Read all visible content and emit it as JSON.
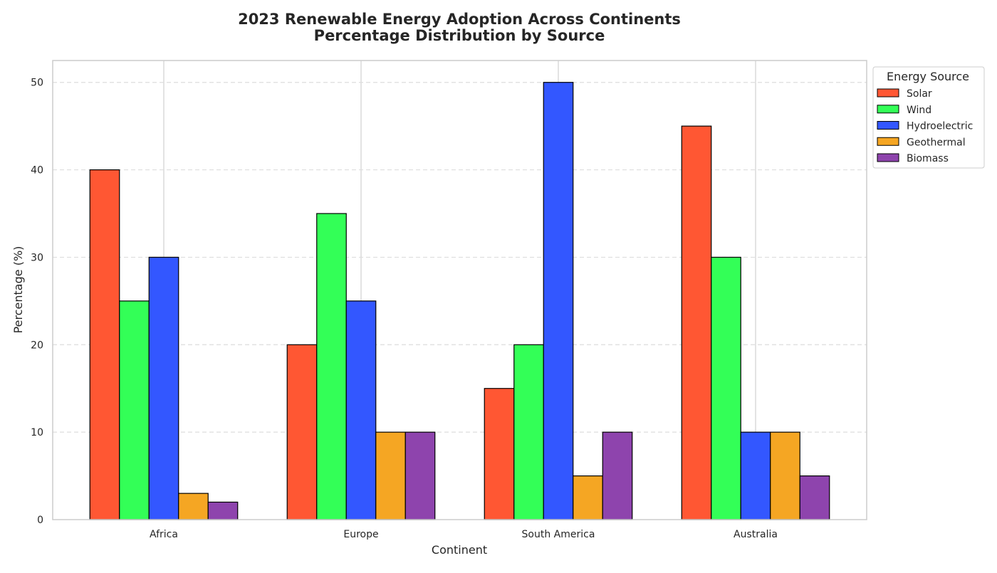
{
  "chart_data": {
    "type": "bar",
    "title": "2023 Renewable Energy Adoption Across Continents",
    "subtitle": "Percentage Distribution by Source",
    "xlabel": "Continent",
    "ylabel": "Percentage (%)",
    "categories": [
      "Africa",
      "Europe",
      "South America",
      "Australia"
    ],
    "ylim": [
      0,
      52.5
    ],
    "yticks": [
      0,
      10,
      20,
      30,
      40,
      50
    ],
    "grid": {
      "y": true,
      "y_style": "dashed",
      "x": true
    },
    "legend": {
      "title": "Energy Source",
      "placement": "outside-top-right"
    },
    "series": [
      {
        "name": "Solar",
        "color": "#FF5733",
        "values": [
          40,
          20,
          15,
          45
        ]
      },
      {
        "name": "Wind",
        "color": "#33FF57",
        "values": [
          25,
          35,
          20,
          30
        ]
      },
      {
        "name": "Hydroelectric",
        "color": "#3357FF",
        "values": [
          30,
          25,
          50,
          10
        ]
      },
      {
        "name": "Geothermal",
        "color": "#F5A623",
        "values": [
          3,
          10,
          5,
          10
        ]
      },
      {
        "name": "Biomass",
        "color": "#8E44AD",
        "values": [
          2,
          10,
          10,
          5
        ]
      }
    ]
  }
}
